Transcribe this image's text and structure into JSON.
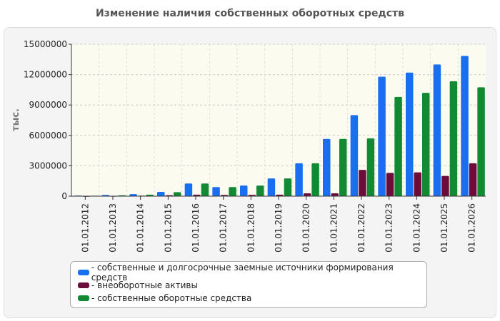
{
  "chart_data": {
    "type": "bar",
    "title": "Изменение наличия собственных оборотных средств",
    "ylabel": "тыс.",
    "ylim": [
      0,
      15000000
    ],
    "yticks": [
      "0",
      "3000000",
      "6000000",
      "9000000",
      "12000000",
      "15000000"
    ],
    "categories": [
      "01.01.2012",
      "01.01.2013",
      "01.01.2014",
      "01.01.2015",
      "01.01.2016",
      "01.01.2017",
      "01.01.2018",
      "01.01.2019",
      "01.01.2020",
      "01.01.2021",
      "01.01.2022",
      "01.01.2023",
      "01.01.2024",
      "01.01.2025",
      "01.01.2026"
    ],
    "series": [
      {
        "name": "- собственные и долгосрочные заемные источники формирования средств",
        "color": "#1a6ff0",
        "values": [
          60000,
          120000,
          200000,
          420000,
          1250000,
          900000,
          1050000,
          1750000,
          3250000,
          5650000,
          8000000,
          11800000,
          12200000,
          13000000,
          13850000
        ]
      },
      {
        "name": "- внеоборотные активы",
        "color": "#6b0c3a",
        "values": [
          20000,
          30000,
          50000,
          100000,
          150000,
          120000,
          130000,
          150000,
          280000,
          280000,
          2600000,
          2300000,
          2350000,
          2000000,
          3250000
        ]
      },
      {
        "name": "- собственные оборотные средства",
        "color": "#128a34",
        "values": [
          40000,
          90000,
          150000,
          400000,
          1250000,
          900000,
          1050000,
          1750000,
          3250000,
          5650000,
          5700000,
          9800000,
          10200000,
          11350000,
          10750000
        ]
      }
    ],
    "grid": true,
    "legend_position": "bottom"
  }
}
